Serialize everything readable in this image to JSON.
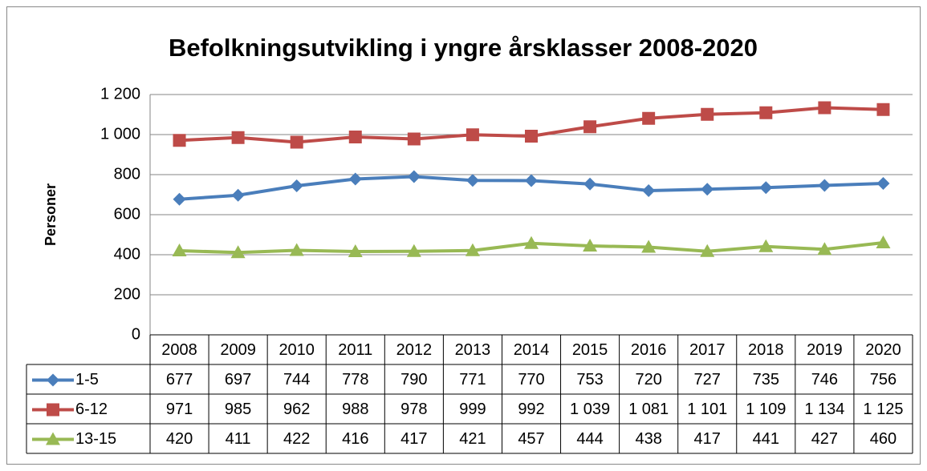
{
  "chart_data": {
    "type": "line",
    "title": "Befolkningsutvikling i yngre årsklasser 2008-2020",
    "y_label": "Personer",
    "categories": [
      "2008",
      "2009",
      "2010",
      "2011",
      "2012",
      "2013",
      "2014",
      "2015",
      "2016",
      "2017",
      "2018",
      "2019",
      "2020"
    ],
    "series": [
      {
        "name": "1-5",
        "color": "#4a7ebb",
        "marker": "diamond",
        "values": [
          677,
          697,
          744,
          778,
          790,
          771,
          770,
          753,
          720,
          727,
          735,
          746,
          756
        ]
      },
      {
        "name": "6-12",
        "color": "#be4b48",
        "marker": "square",
        "values": [
          971,
          985,
          962,
          988,
          978,
          999,
          992,
          1039,
          1081,
          1101,
          1109,
          1134,
          1125
        ],
        "value_labels": [
          "971",
          "985",
          "962",
          "988",
          "978",
          "999",
          "992",
          "1 039",
          "1 081",
          "1 101",
          "1 109",
          "1 134",
          "1 125"
        ]
      },
      {
        "name": "13-15",
        "color": "#98b954",
        "marker": "triangle",
        "values": [
          420,
          411,
          422,
          416,
          417,
          421,
          457,
          444,
          438,
          417,
          441,
          427,
          460
        ]
      }
    ],
    "ylim": [
      0,
      1200
    ],
    "yticks": [
      0,
      200,
      400,
      600,
      800,
      {
        "value": 1000,
        "label": "1 000"
      },
      {
        "value": 1200,
        "label": "1 200"
      }
    ],
    "grid": true,
    "data_table": true
  }
}
